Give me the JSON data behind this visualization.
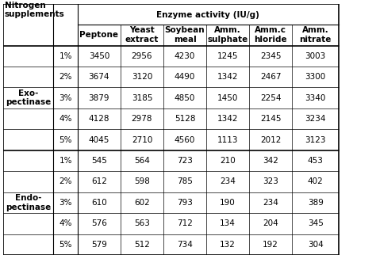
{
  "title_col1": "Nitrogen\nsupplements",
  "title_main": "Enzyme activity (IU/g)",
  "col_headers": [
    "Peptone",
    "Yeast\nextract",
    "Soybean\nmeal",
    "Amm.\nsulphate",
    "Amm.c\nhloride",
    "Amm.\nnitrate"
  ],
  "row_groups": [
    {
      "group_label": "Exo-\npectinase",
      "rows": [
        {
          "pct": "1%",
          "values": [
            3450,
            2956,
            4230,
            1245,
            2345,
            3003
          ]
        },
        {
          "pct": "2%",
          "values": [
            3674,
            3120,
            4490,
            1342,
            2467,
            3300
          ]
        },
        {
          "pct": "3%",
          "values": [
            3879,
            3185,
            4850,
            1450,
            2254,
            3340
          ]
        },
        {
          "pct": "4%",
          "values": [
            4128,
            2978,
            5128,
            1342,
            2145,
            3234
          ]
        },
        {
          "pct": "5%",
          "values": [
            4045,
            2710,
            4560,
            1113,
            2012,
            3123
          ]
        }
      ]
    },
    {
      "group_label": "Endo-\npectinase",
      "rows": [
        {
          "pct": "1%",
          "values": [
            545,
            564,
            723,
            210,
            342,
            453
          ]
        },
        {
          "pct": "2%",
          "values": [
            612,
            598,
            785,
            234,
            323,
            402
          ]
        },
        {
          "pct": "3%",
          "values": [
            610,
            602,
            793,
            190,
            234,
            389
          ]
        },
        {
          "pct": "4%",
          "values": [
            576,
            563,
            712,
            134,
            204,
            345
          ]
        },
        {
          "pct": "5%",
          "values": [
            579,
            512,
            734,
            132,
            192,
            304
          ]
        }
      ]
    }
  ],
  "bg_color": "#ffffff",
  "text_color": "#000000",
  "border_color": "#000000",
  "header_bold": true,
  "font_size": 7.5,
  "header_font_size": 7.5
}
